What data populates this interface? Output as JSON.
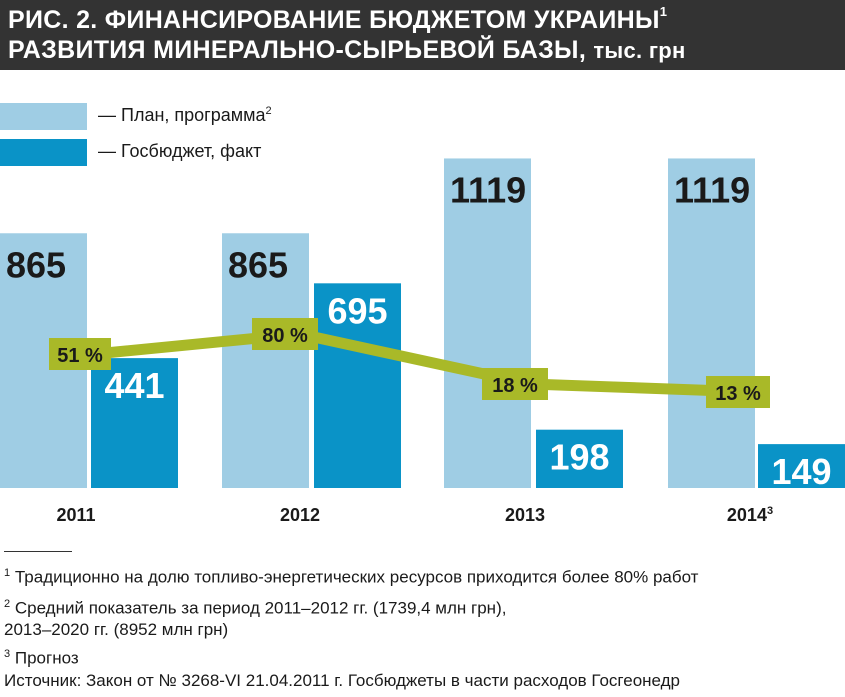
{
  "title": {
    "line1": "РИС. 2. ФИНАНСИРОВАНИЕ БЮДЖЕТОМ УКРАИНЫ",
    "line1_sup": "1",
    "line2": "РАЗВИТИЯ МИНЕРАЛЬНО-СЫРЬЕВОЙ БАЗЫ,",
    "unit": "тыс. грн"
  },
  "legend": {
    "plan_label": "— План, программа",
    "plan_sup": "2",
    "fact_label": "— Госбюджет, факт"
  },
  "colors": {
    "plan": "#9fcde4",
    "fact": "#0a93c7",
    "line": "#a9b928",
    "label_box": "#a9b928",
    "title_bg": "#333333"
  },
  "chart_data": {
    "type": "bar",
    "categories": [
      "2011",
      "2012",
      "2013",
      "2014"
    ],
    "category_sups": [
      "",
      "",
      "",
      "3"
    ],
    "series": [
      {
        "values": [
          865,
          865,
          1119,
          1119
        ]
      },
      {
        "values": [
          441,
          695,
          198,
          149
        ]
      }
    ],
    "value_labels": [
      [
        "865",
        "865",
        "1119",
        "1119"
      ],
      [
        "441",
        "695",
        "198",
        "149"
      ]
    ],
    "ratio_line": {
      "type": "line",
      "values": [
        51,
        80,
        18,
        13
      ],
      "labels": [
        "51 %",
        "80 %",
        "18 %",
        "13 %"
      ]
    },
    "ylim": [
      0,
      1500
    ]
  },
  "footnotes": {
    "fn1_sup": "1",
    "fn1": "Традиционно на долю топливо-энергетических ресурсов приходится более 80% работ",
    "fn2_sup": "2",
    "fn2_line1": "Средний показатель за период 2011–2012 гг. (1739,4 млн грн),",
    "fn2_line2": "2013–2020 гг. (8952 млн грн)",
    "fn3_sup": "3",
    "fn3": "Прогноз",
    "source": "Источник: Закон от № 3268-VI 21.04.2011 г. Госбюджеты в части расходов Госгеонедр"
  }
}
